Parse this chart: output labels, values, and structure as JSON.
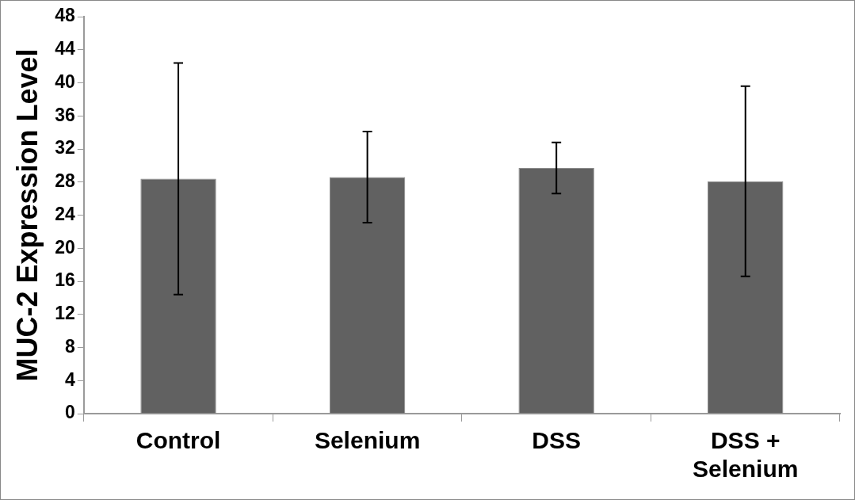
{
  "chart_data": {
    "type": "bar",
    "ylabel": "MUC-2 Expression Level",
    "categories": [
      "Control",
      "Selenium",
      "DSS",
      "DSS + Selenium"
    ],
    "values": [
      28.4,
      28.6,
      29.7,
      28.1
    ],
    "errors": [
      14.0,
      5.5,
      3.1,
      11.5
    ],
    "color": "#616161",
    "ylim": [
      0,
      48
    ],
    "yticks": [
      0,
      4,
      8,
      12,
      16,
      20,
      24,
      28,
      32,
      36,
      40,
      44,
      48
    ],
    "grid": false,
    "legend": false
  }
}
